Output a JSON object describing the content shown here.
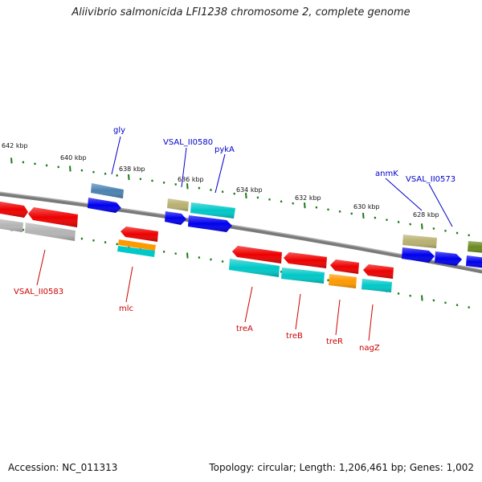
{
  "title": "Aliivibrio salmonicida LFI1238 chromosome 2, complete genome",
  "footer": {
    "accession": "Accession: NC_011313",
    "topology": "Topology: circular; Length: 1,206,461 bp; Genes: 1,002"
  },
  "ruler_ticks": [
    "642 kbp",
    "640 kbp",
    "638 kbp",
    "636 kbp",
    "634 kbp",
    "632 kbp",
    "630 kbp",
    "628 kbp"
  ],
  "labels_forward": [
    "gly",
    "VSAL_II0580",
    "pykA",
    "anmK",
    "VSAL_II0573"
  ],
  "labels_reverse": [
    "VSAL_II0583",
    "mlc",
    "treA",
    "treB",
    "treR",
    "nagZ"
  ],
  "colors": {
    "forward_label": "#0000cc",
    "reverse_label": "#cc0000",
    "tick": "#1a7a1a",
    "backbone": "#888888",
    "red": "#ee0000",
    "blue": "#0000ee",
    "cyan": "#00c8c8",
    "olive": "#b8b070",
    "steel": "#4a82b0",
    "orange": "#ff9900",
    "gray": "#b4b4b4",
    "green": "#6a8a20"
  }
}
